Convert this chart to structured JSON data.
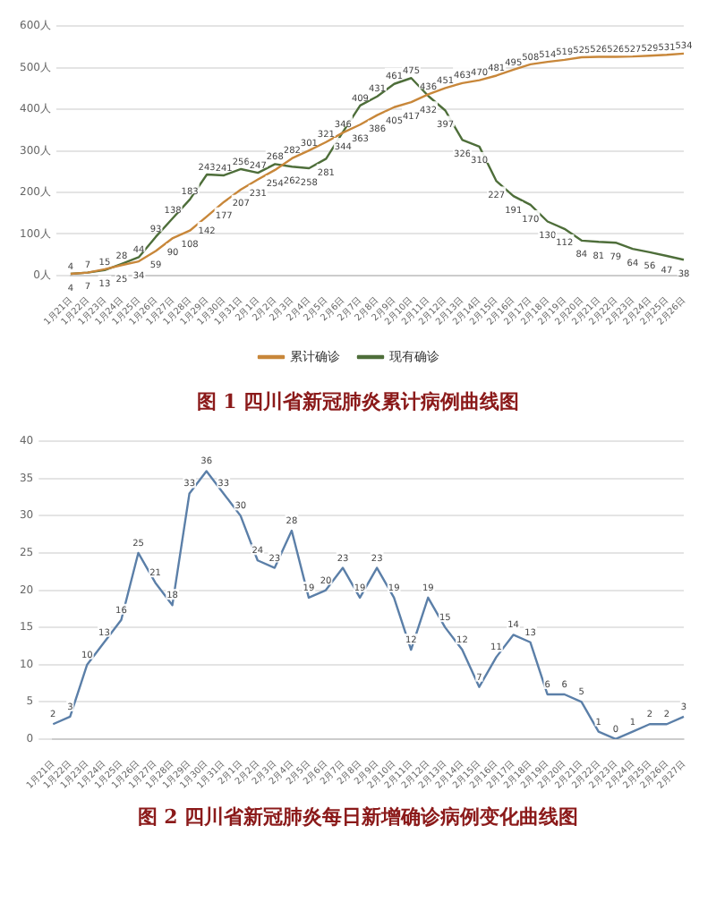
{
  "chart_data": [
    {
      "type": "line",
      "title": "图 1   四川省新冠肺炎累计病例曲线图",
      "categories": [
        "1月21日",
        "1月22日",
        "1月23日",
        "1月24日",
        "1月25日",
        "1月26日",
        "1月27日",
        "1月28日",
        "1月29日",
        "1月30日",
        "1月31日",
        "2月1日",
        "2月2日",
        "2月3日",
        "2月4日",
        "2月5日",
        "2月6日",
        "2月7日",
        "2月8日",
        "2月9日",
        "2月10日",
        "2月11日",
        "2月12日",
        "2月13日",
        "2月14日",
        "2月15日",
        "2月16日",
        "2月17日",
        "2月18日",
        "2月19日",
        "2月20日",
        "2月21日",
        "2月22日",
        "2月23日",
        "2月24日",
        "2月25日",
        "2月26日"
      ],
      "series": [
        {
          "name": "累计确诊",
          "color": "#c8873a",
          "values": [
            4,
            7,
            15,
            25,
            34,
            59,
            90,
            108,
            142,
            177,
            207,
            231,
            254,
            282,
            301,
            321,
            344,
            363,
            386,
            405,
            417,
            436,
            451,
            463,
            470,
            481,
            495,
            508,
            514,
            519,
            525,
            526,
            526,
            527,
            529,
            531,
            534
          ]
        },
        {
          "name": "现有确诊",
          "color": "#4e6e3a",
          "values": [
            4,
            7,
            13,
            28,
            44,
            93,
            138,
            183,
            243,
            241,
            256,
            247,
            268,
            262,
            258,
            281,
            346,
            409,
            431,
            461,
            475,
            432,
            397,
            326,
            310,
            227,
            191,
            170,
            130,
            112,
            84,
            81,
            79,
            64,
            56,
            47,
            38
          ]
        }
      ],
      "ylim": [
        0,
        600
      ],
      "yticks": [
        {
          "value": 0,
          "label": "0人"
        },
        {
          "value": 100,
          "label": "100人"
        },
        {
          "value": 200,
          "label": "200人"
        },
        {
          "value": 300,
          "label": "300人"
        },
        {
          "value": 400,
          "label": "400人"
        },
        {
          "value": 500,
          "label": "500人"
        },
        {
          "value": 600,
          "label": "600人"
        }
      ],
      "grid": "y",
      "legend": "bottom",
      "marker": "none",
      "data_labels": true
    },
    {
      "type": "line",
      "title": "图 2   四川省新冠肺炎每日新增确诊病例变化曲线图",
      "categories": [
        "1月21日",
        "1月22日",
        "1月23日",
        "1月24日",
        "1月25日",
        "1月26日",
        "1月27日",
        "1月28日",
        "1月29日",
        "1月30日",
        "1月31日",
        "2月1日",
        "2月2日",
        "2月3日",
        "2月4日",
        "2月5日",
        "2月6日",
        "2月7日",
        "2月8日",
        "2月9日",
        "2月10日",
        "2月11日",
        "2月12日",
        "2月13日",
        "2月14日",
        "2月15日",
        "2月16日",
        "2月17日",
        "2月18日",
        "2月19日",
        "2月20日",
        "2月21日",
        "2月22日",
        "2月23日",
        "2月24日",
        "2月25日",
        "2月26日",
        "2月27日"
      ],
      "series": [
        {
          "color": "#5b7fa8",
          "values": [
            2,
            3,
            10,
            13,
            16,
            25,
            21,
            18,
            33,
            36,
            33,
            30,
            24,
            23,
            28,
            19,
            20,
            23,
            19,
            23,
            19,
            12,
            19,
            15,
            12,
            7,
            11,
            14,
            13,
            6,
            6,
            5,
            1,
            0,
            1,
            2,
            2,
            3
          ]
        }
      ],
      "ylim": [
        0,
        40
      ],
      "yticks": [
        0,
        5,
        10,
        15,
        20,
        25,
        30,
        35,
        40
      ],
      "grid": "y",
      "legend": false,
      "marker": "none",
      "data_labels": true
    }
  ]
}
